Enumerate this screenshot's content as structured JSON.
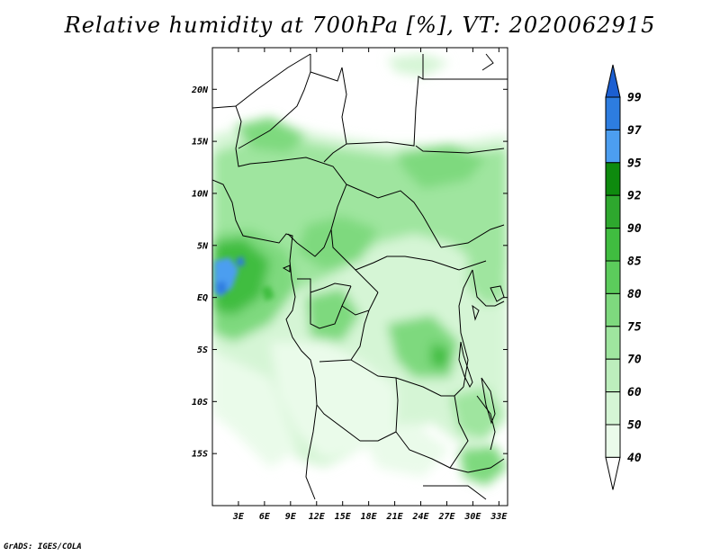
{
  "title": "Relative humidity at 700hPa [%], VT: 2020062915",
  "credit": "GrADS: IGES/COLA",
  "map": {
    "lon_range": [
      0,
      34
    ],
    "lat_range": [
      -20,
      24
    ],
    "lon_ticks": [
      "3E",
      "6E",
      "9E",
      "12E",
      "15E",
      "18E",
      "21E",
      "24E",
      "27E",
      "30E",
      "33E"
    ],
    "lat_ticks": [
      "20N",
      "15N",
      "10N",
      "5N",
      "EQ",
      "5S",
      "10S",
      "15S"
    ]
  },
  "colorbar": {
    "levels": [
      "99",
      "97",
      "95",
      "92",
      "90",
      "85",
      "80",
      "75",
      "70",
      "60",
      "50",
      "40"
    ],
    "colors": [
      "#1c5fd1",
      "#2d7de0",
      "#4c9ef0",
      "#0e8a0e",
      "#2ea82e",
      "#40bd40",
      "#5ccc5c",
      "#7ed97e",
      "#9fe59f",
      "#bdeebd",
      "#d5f5d5",
      "#eafbea",
      "#ffffff"
    ]
  }
}
